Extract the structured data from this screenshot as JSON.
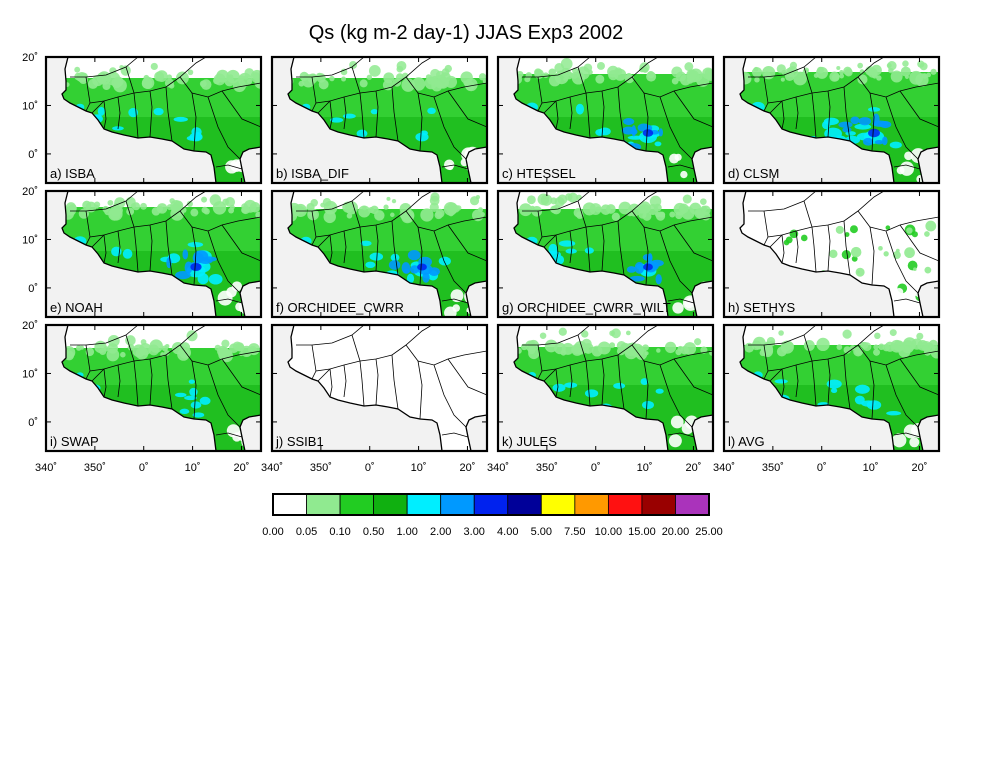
{
  "figure": {
    "title": "Qs (kg m-2 day-1) JJAS Exp3 2002"
  },
  "axes": {
    "lat_ticks": [
      "20˚",
      "10˚",
      "0˚"
    ],
    "lon_ticks": [
      "340˚",
      "350˚",
      "0˚",
      "10˚",
      "20˚"
    ],
    "lat_values": [
      20,
      10,
      0
    ],
    "lon_values": [
      -20,
      -10,
      0,
      10,
      20
    ],
    "extent": {
      "lon_min": -20,
      "lon_max": 24,
      "lat_min": -6,
      "lat_max": 20
    }
  },
  "panels": [
    {
      "id": "a",
      "label": "a) ISBA",
      "intensity": 0.55
    },
    {
      "id": "b",
      "label": "b) ISBA_DIF",
      "intensity": 0.55
    },
    {
      "id": "c",
      "label": "c) HTESSEL",
      "intensity": 0.75
    },
    {
      "id": "d",
      "label": "d) CLSM",
      "intensity": 0.85
    },
    {
      "id": "e",
      "label": "e) NOAH",
      "intensity": 0.8
    },
    {
      "id": "f",
      "label": "f) ORCHIDEE_CWRR",
      "intensity": 0.7
    },
    {
      "id": "g",
      "label": "g) ORCHIDEE_CWRR_WILT",
      "intensity": 0.7
    },
    {
      "id": "h",
      "label": "h) SETHYS",
      "intensity": 0.08
    },
    {
      "id": "i",
      "label": "i) SWAP",
      "intensity": 0.45
    },
    {
      "id": "j",
      "label": "j) SSIB1",
      "intensity": 0.0
    },
    {
      "id": "k",
      "label": "k) JULES",
      "intensity": 0.5
    },
    {
      "id": "l",
      "label": "l) AVG",
      "intensity": 0.6
    }
  ],
  "colorbar": {
    "levels": [
      "0.00",
      "0.05",
      "0.10",
      "0.50",
      "1.00",
      "2.00",
      "3.00",
      "4.00",
      "5.00",
      "7.50",
      "10.00",
      "15.00",
      "20.00",
      "25.00"
    ],
    "colors": [
      "#ffffff",
      "#90ea90",
      "#22cc22",
      "#10b010",
      "#00eeff",
      "#0099ff",
      "#0022ee",
      "#000099",
      "#ffff00",
      "#ff9900",
      "#ff1111",
      "#990000",
      "#aa33bb"
    ]
  },
  "map_colors": {
    "ocean": "#f2f2f2",
    "land": "#ffffff",
    "green_light": "#90ea90",
    "green": "#22cc22",
    "green_dark": "#10b010",
    "cyan": "#00eeff",
    "blue": "#0099ff",
    "blue_dark": "#0022ee"
  }
}
